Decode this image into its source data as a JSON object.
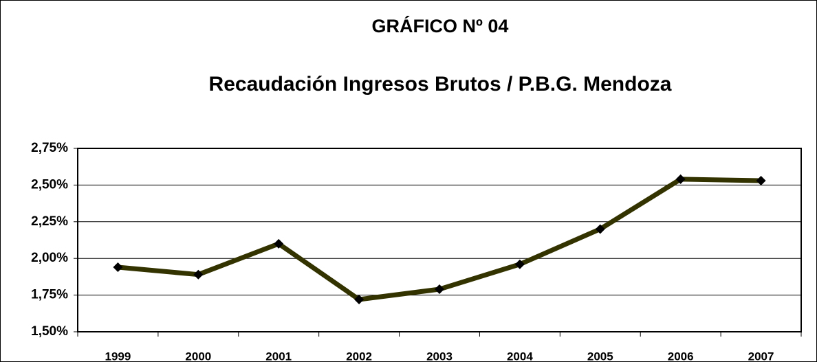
{
  "chart_data": {
    "type": "line",
    "title": "GRÁFICO Nº 04",
    "subtitle": "Recaudación Ingresos Brutos / P.B.G. Mendoza",
    "categories": [
      "1999",
      "2000",
      "2001",
      "2002",
      "2003",
      "2004",
      "2005",
      "2006",
      "2007"
    ],
    "series": [
      {
        "name": "Recaudación Ingresos Brutos / P.B.G.",
        "color": "#333300",
        "values": [
          1.94,
          1.89,
          2.1,
          1.72,
          1.79,
          1.96,
          2.2,
          2.54,
          2.53
        ]
      }
    ],
    "ylim": [
      1.5,
      2.75
    ],
    "yticks": [
      {
        "value": 1.5,
        "label": "1,50%"
      },
      {
        "value": 1.75,
        "label": "1,75%"
      },
      {
        "value": 2.0,
        "label": "2,00%"
      },
      {
        "value": 2.25,
        "label": "2,25%"
      },
      {
        "value": 2.5,
        "label": "2,50%"
      },
      {
        "value": 2.75,
        "label": "2,75%"
      }
    ],
    "grid": true
  }
}
